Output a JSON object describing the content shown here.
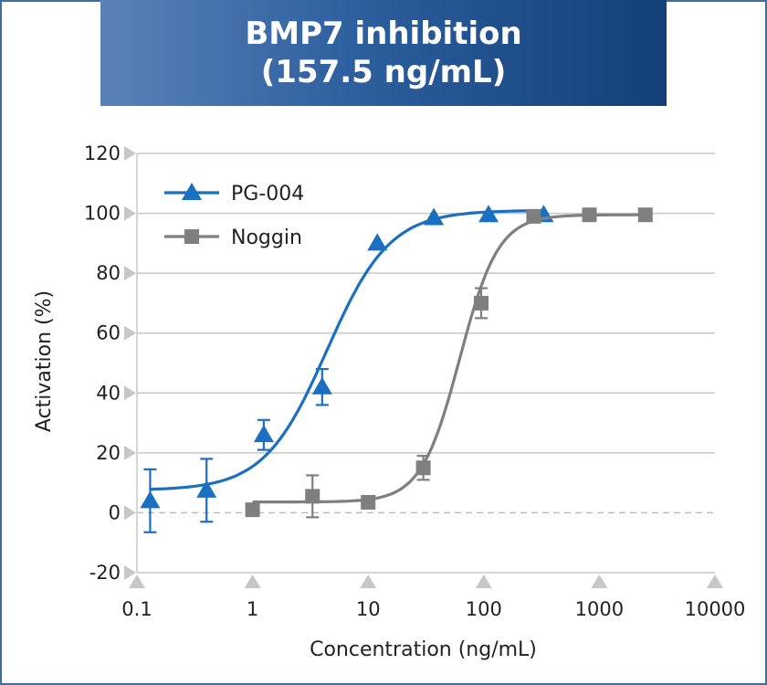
{
  "title": {
    "line1": "BMP7 inhibition",
    "line2": "(157.5 ng/mL)"
  },
  "colors": {
    "band_start": "#5a82b8",
    "band_end": "#123f77",
    "pg004": "#1b6fc0",
    "noggin": "#7f7f7f",
    "grid": "#c8c8c8",
    "tick_marker": "#c7c7c7"
  },
  "chart_data": {
    "type": "line",
    "xlabel": "Concentration (ng/mL)",
    "ylabel": "Activation (%)",
    "xscale": "log",
    "xlim": [
      0.1,
      10000
    ],
    "ylim": [
      -20,
      120
    ],
    "x_ticks": [
      0.1,
      1,
      10,
      100,
      1000,
      10000
    ],
    "x_tick_labels": [
      "0.1",
      "1",
      "10",
      "100",
      "1000",
      "10000"
    ],
    "y_ticks": [
      -20,
      0,
      20,
      40,
      60,
      80,
      100,
      120
    ],
    "y_tick_labels": [
      "-20",
      "0",
      "20",
      "40",
      "60",
      "80",
      "100",
      "120"
    ],
    "grid": "horizontal",
    "zero_line": "dashed",
    "legend_position": "top-left",
    "series": [
      {
        "name": "PG-004",
        "marker": "triangle",
        "color": "#1b6fc0",
        "points": [
          {
            "x": 0.13,
            "y": 4,
            "err": 10.5
          },
          {
            "x": 0.4,
            "y": 7.5,
            "err": 10.5
          },
          {
            "x": 1.25,
            "y": 26,
            "err": 5
          },
          {
            "x": 4,
            "y": 42,
            "err": 6
          },
          {
            "x": 12,
            "y": 90,
            "err": 0
          },
          {
            "x": 37,
            "y": 98.5,
            "err": 0
          },
          {
            "x": 110,
            "y": 99.5,
            "err": 0
          },
          {
            "x": 330,
            "y": 99.5,
            "err": 0
          }
        ],
        "fit": {
          "bottom": 7.5,
          "top": 101,
          "ec50": 4.4,
          "hill": 1.6,
          "x_from": 0.13,
          "x_to": 330
        }
      },
      {
        "name": "Noggin",
        "marker": "square",
        "color": "#7f7f7f",
        "points": [
          {
            "x": 1,
            "y": 1,
            "err": 0
          },
          {
            "x": 3.3,
            "y": 5.5,
            "err": 7
          },
          {
            "x": 10,
            "y": 3.5,
            "err": 0
          },
          {
            "x": 30,
            "y": 15,
            "err": 4
          },
          {
            "x": 95,
            "y": 70,
            "err": 5
          },
          {
            "x": 270,
            "y": 99,
            "err": 0
          },
          {
            "x": 820,
            "y": 99.5,
            "err": 0
          },
          {
            "x": 2500,
            "y": 99.5,
            "err": 0
          }
        ],
        "fit": {
          "bottom": 3.6,
          "top": 99.5,
          "ec50": 62,
          "hill": 2.6,
          "x_from": 1,
          "x_to": 2500
        }
      }
    ]
  }
}
